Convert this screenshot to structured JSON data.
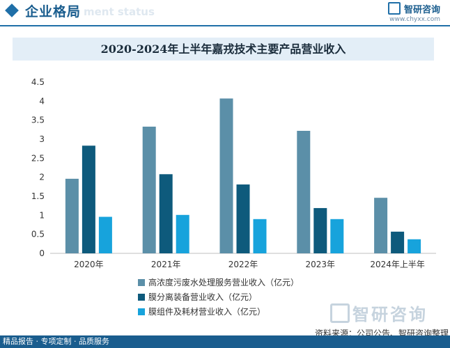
{
  "header": {
    "title": "企业格局",
    "subtitle_bg": "ment status",
    "brand_name": "智研咨询",
    "brand_url": "www.chyxx.com"
  },
  "chart_data": {
    "type": "bar",
    "title": "2020-2024年上半年嘉戎技术主要产品营业收入",
    "categories": [
      "2020年",
      "2021年",
      "2022年",
      "2023年",
      "2024年上半年"
    ],
    "series": [
      {
        "name": "高浓度污废水处理服务营业收入（亿元）",
        "values": [
          1.96,
          3.33,
          4.07,
          3.22,
          1.46
        ],
        "color": "#5b8fa8"
      },
      {
        "name": "膜分离装备营业收入（亿元）",
        "values": [
          2.83,
          2.08,
          1.81,
          1.19,
          0.57
        ],
        "color": "#0e5a7c"
      },
      {
        "name": "膜组件及耗材营业收入（亿元）",
        "values": [
          0.96,
          1.01,
          0.9,
          0.9,
          0.37
        ],
        "color": "#17a3dc"
      }
    ],
    "ylim": [
      0,
      4.5
    ],
    "yticks": [
      "0",
      "0.5",
      "1",
      "1.5",
      "2",
      "2.5",
      "3",
      "3.5",
      "4",
      "4.5"
    ],
    "grid": false,
    "legend": "bottom"
  },
  "watermark": {
    "text": "智研咨询"
  },
  "source": "资料来源：公司公告、智研咨询整理",
  "footer": {
    "text": "精品报告 · 专项定制 · 品质服务"
  }
}
